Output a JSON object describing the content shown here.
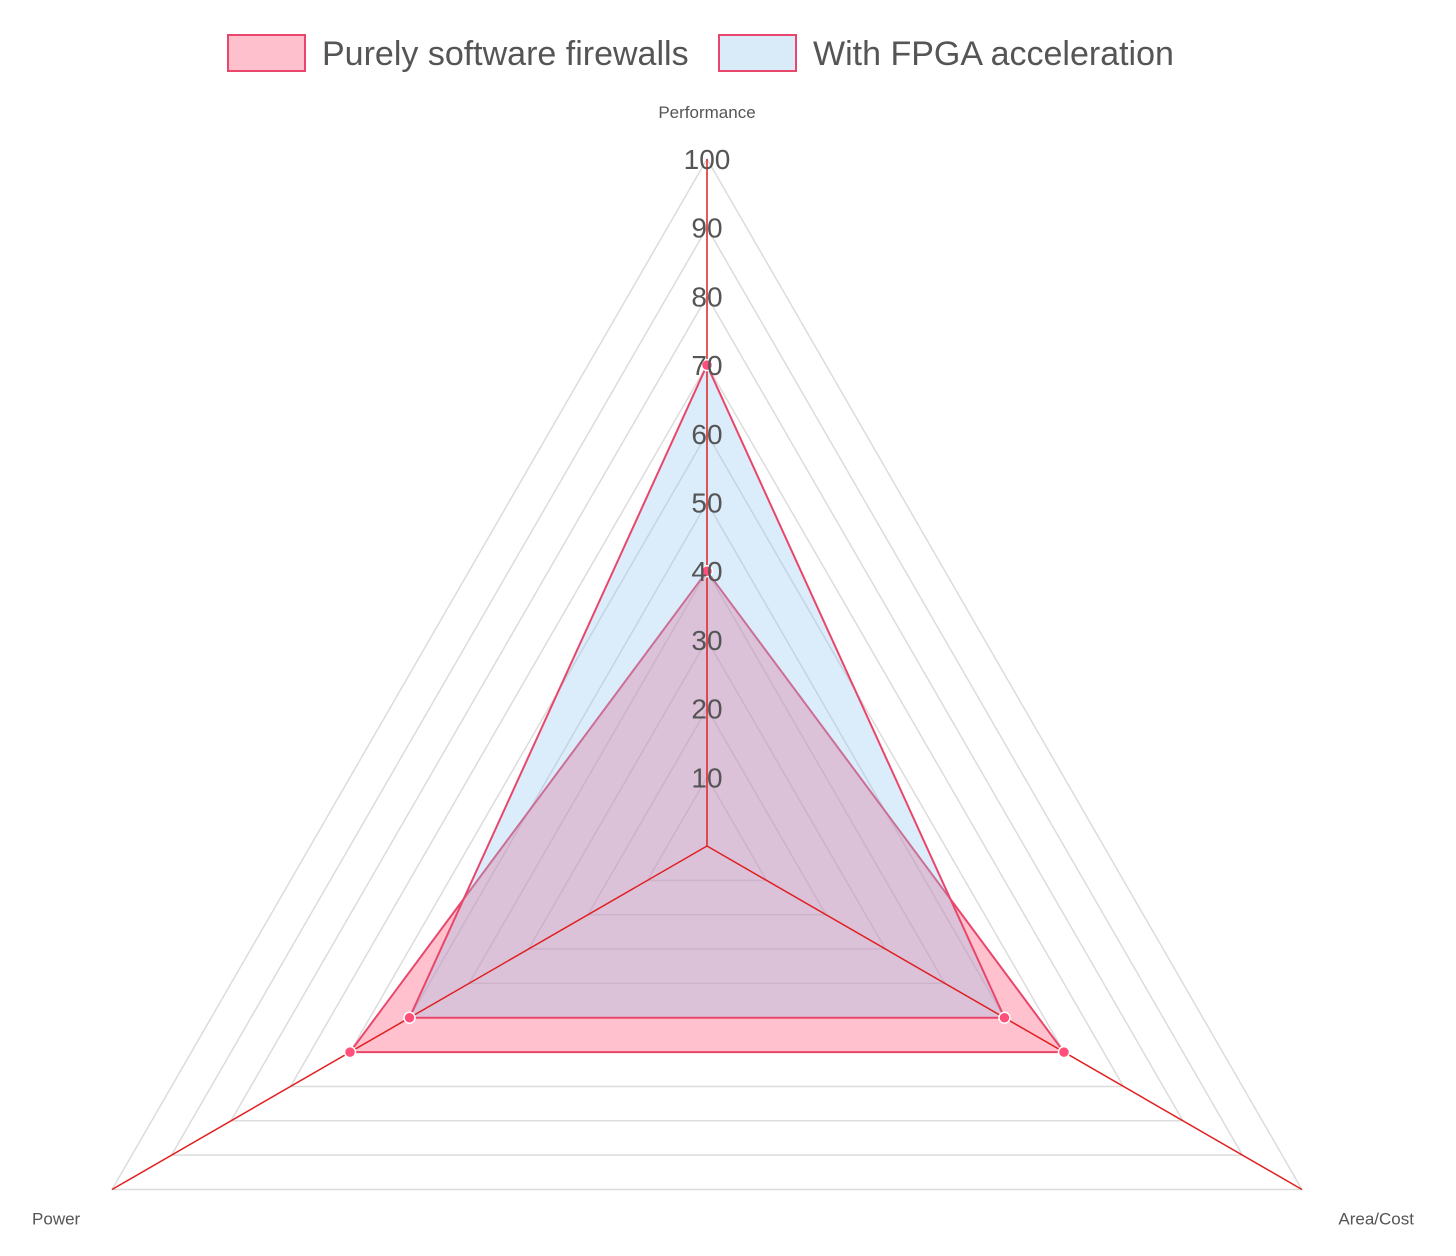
{
  "chart_data": {
    "type": "radar",
    "axes": [
      "Performance",
      "Area/Cost",
      "Power"
    ],
    "scale": {
      "min": 0,
      "max": 100,
      "step": 10
    },
    "ticks": [
      "10",
      "20",
      "30",
      "40",
      "50",
      "60",
      "70",
      "80",
      "90",
      "100"
    ],
    "series": [
      {
        "name": "Purely software firewalls",
        "values": [
          40,
          60,
          60
        ],
        "fill": "#ff6384",
        "stroke": "#e8476b"
      },
      {
        "name": "With FPGA acceleration",
        "values": [
          70,
          50,
          50
        ],
        "fill": "#8fc3ee",
        "stroke": "#e8476b"
      }
    ],
    "legend_position": "top",
    "axis_line_color": "#e02020",
    "grid_color": "#dcdcdc"
  }
}
